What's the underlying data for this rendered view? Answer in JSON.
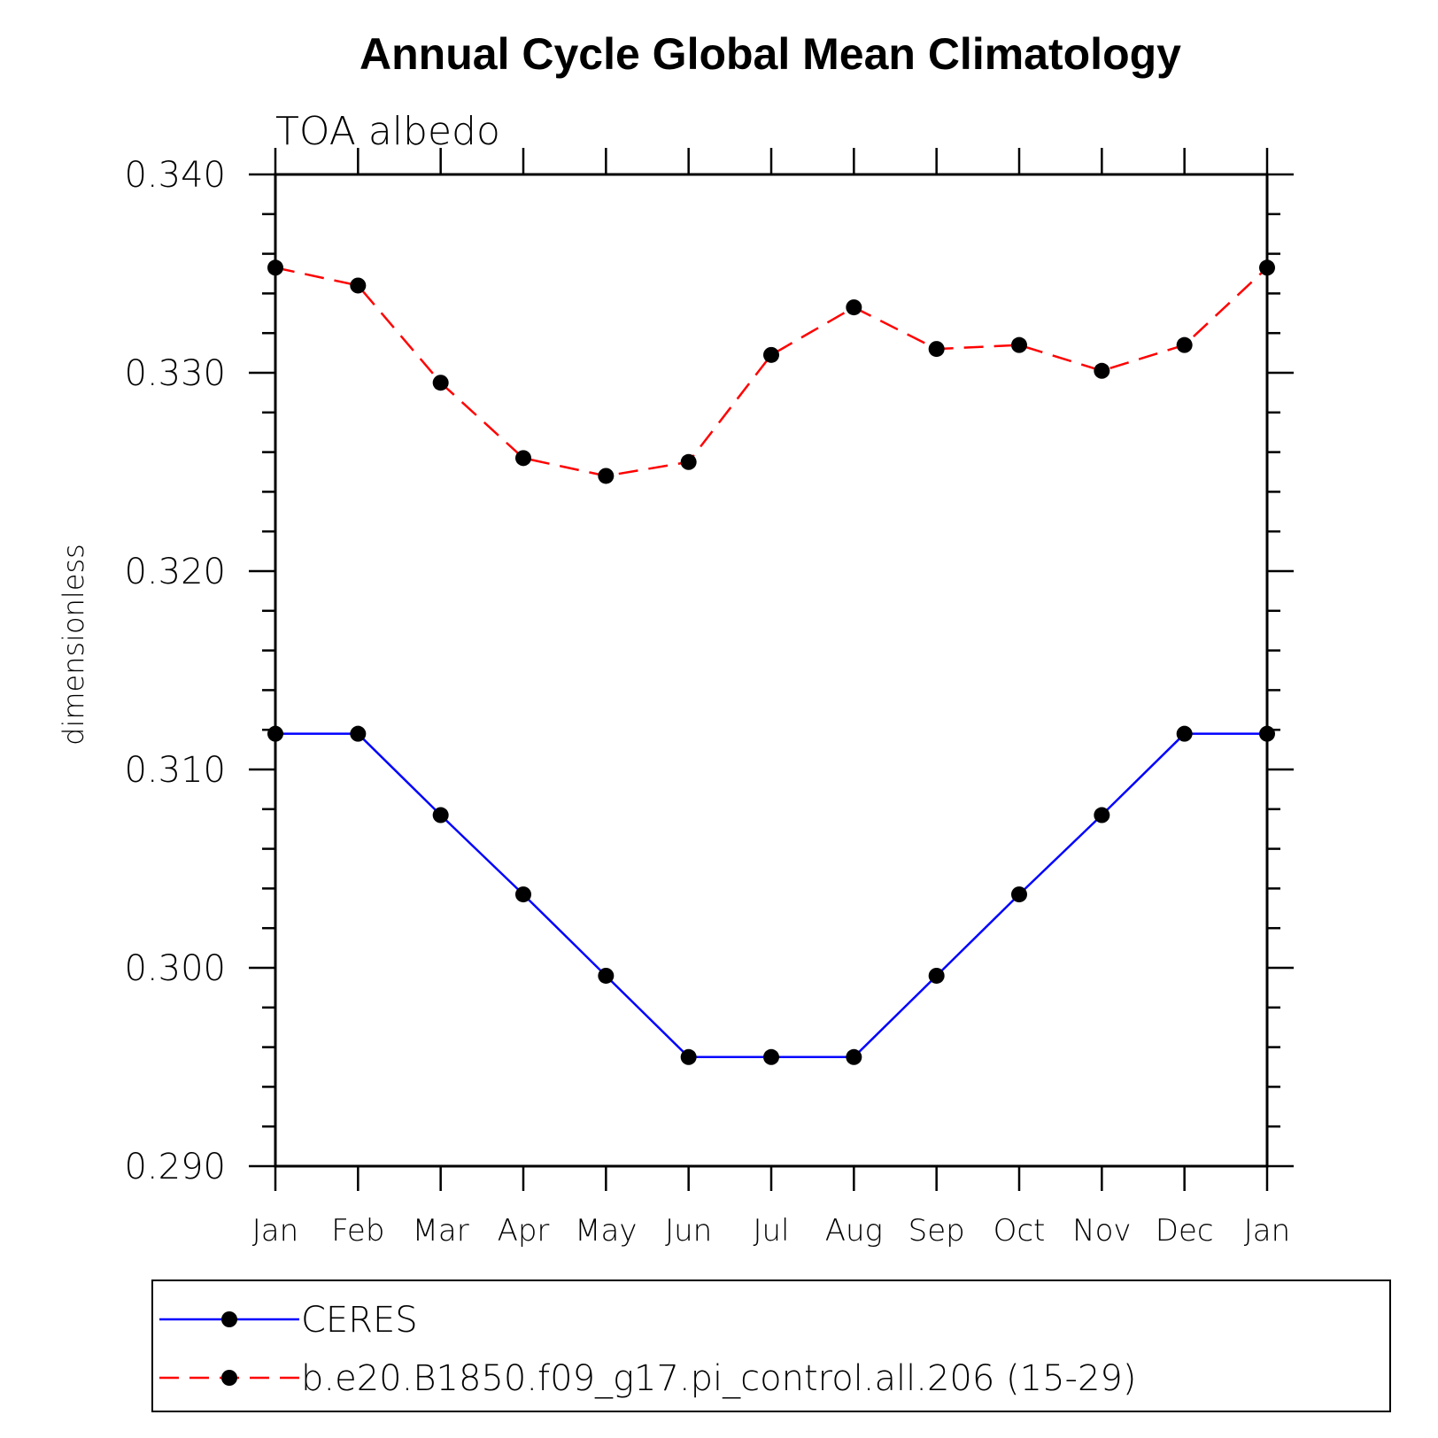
{
  "chart_data": {
    "type": "line",
    "title": "Annual Cycle Global Mean Climatology",
    "subtitle": "TOA albedo",
    "xlabel": "",
    "ylabel": "dimensionless",
    "categories": [
      "Jan",
      "Feb",
      "Mar",
      "Apr",
      "May",
      "Jun",
      "Jul",
      "Aug",
      "Sep",
      "Oct",
      "Nov",
      "Dec",
      "Jan"
    ],
    "ylim": [
      0.29,
      0.34
    ],
    "yticks": [
      "0.290",
      "0.300",
      "0.310",
      "0.320",
      "0.330",
      "0.340"
    ],
    "grid": false,
    "legend_position": "bottom",
    "series": [
      {
        "name": "CERES",
        "color": "#0000ff",
        "line_style": "solid",
        "marker": "filled-circle",
        "values": [
          0.3118,
          0.3118,
          0.3077,
          0.3037,
          0.2996,
          0.2955,
          0.2955,
          0.2955,
          0.2996,
          0.3037,
          0.3077,
          0.3118,
          0.3118
        ]
      },
      {
        "name": "b.e20.B1850.f09_g17.pi_control.all.206 (15-29)",
        "color": "#ff0000",
        "line_style": "dashed",
        "marker": "filled-circle",
        "values": [
          0.3353,
          0.3344,
          0.3295,
          0.3257,
          0.3248,
          0.3255,
          0.3309,
          0.3333,
          0.3312,
          0.3314,
          0.3301,
          0.3314,
          0.3353
        ]
      }
    ]
  }
}
